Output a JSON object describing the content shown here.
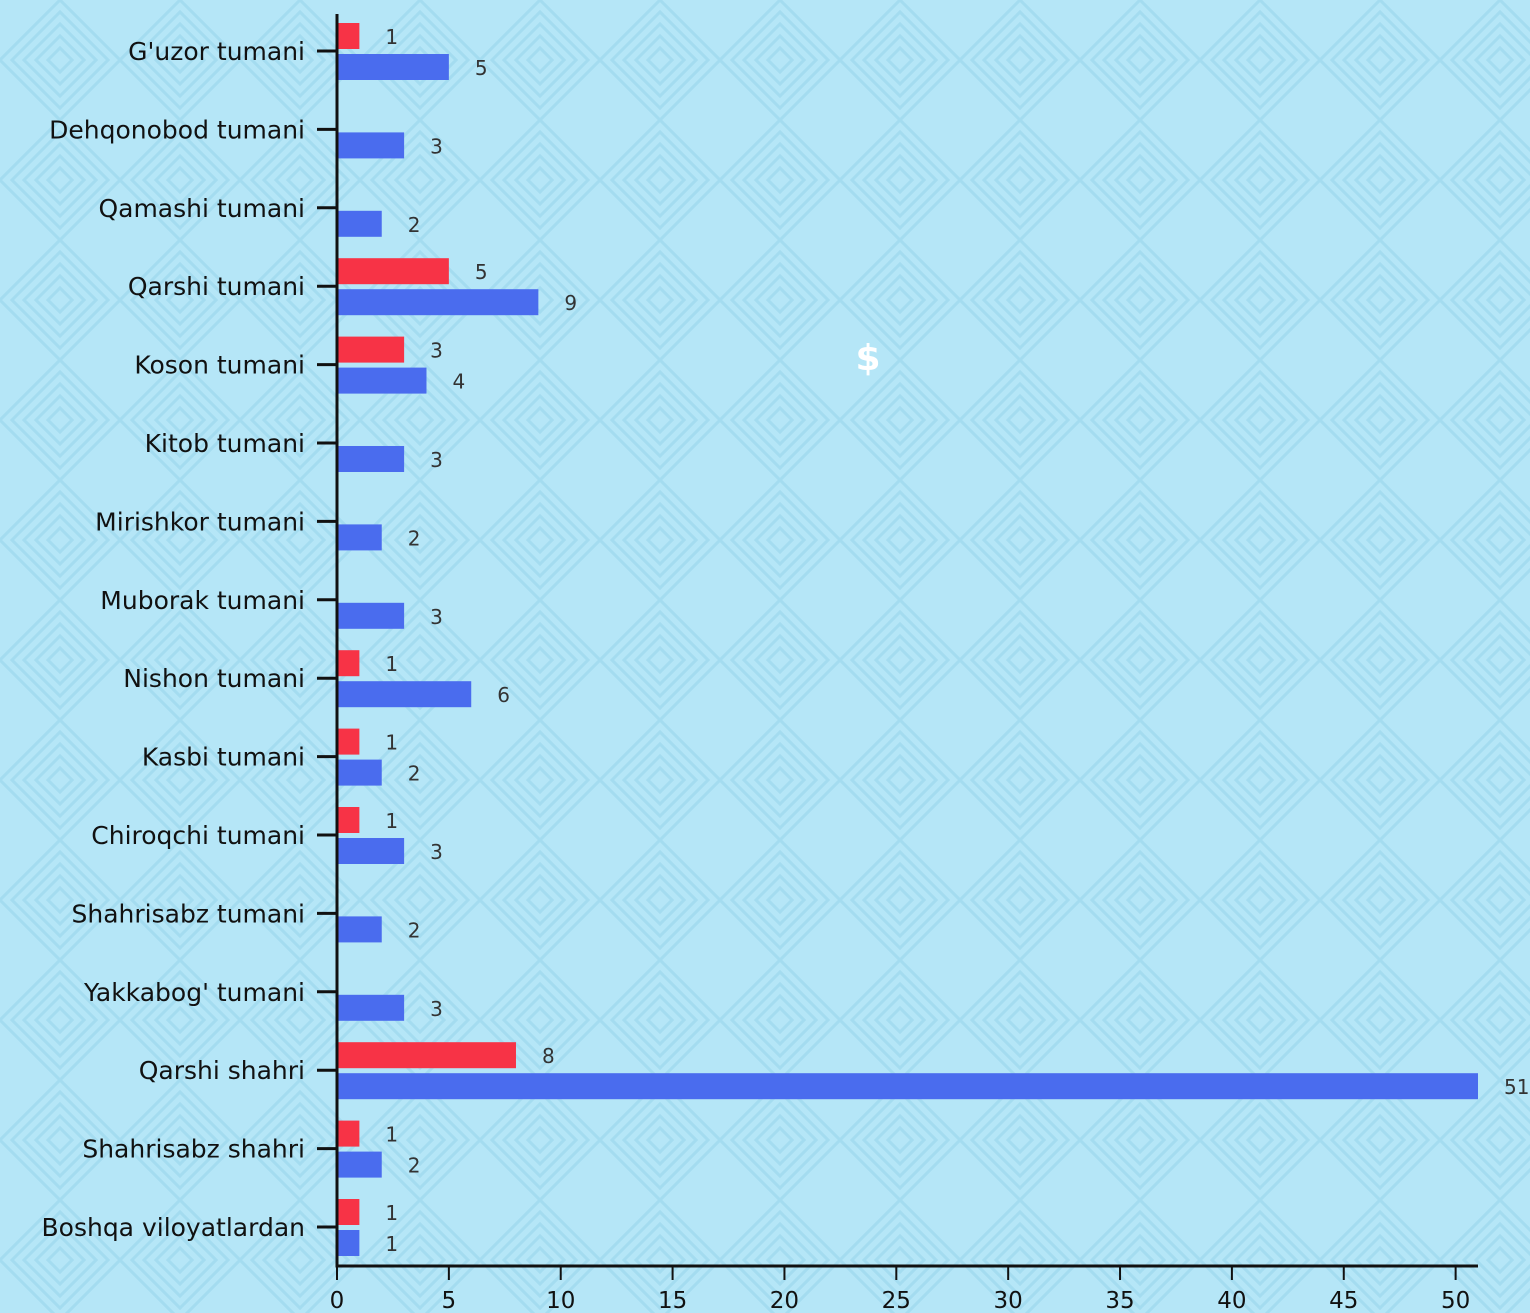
{
  "chart_data": {
    "type": "bar",
    "orientation": "horizontal",
    "categories": [
      "G'uzor tumani",
      "Dehqonobod tumani",
      "Qamashi tumani",
      "Qarshi tumani",
      "Koson tumani",
      "Kitob tumani",
      "Mirishkor tumani",
      "Muborak tumani",
      "Nishon tumani",
      "Kasbi tumani",
      "Chiroqchi tumani",
      "Shahrisabz tumani",
      "Yakkabog' tumani",
      "Qarshi shahri",
      "Shahrisabz shahri",
      "Boshqa viloyatlardan"
    ],
    "series": [
      {
        "color": "#f73346",
        "values": [
          1,
          null,
          null,
          5,
          3,
          null,
          null,
          null,
          1,
          1,
          1,
          null,
          null,
          8,
          1,
          1
        ]
      },
      {
        "color": "#4a6cee",
        "values": [
          5,
          3,
          2,
          9,
          4,
          3,
          2,
          3,
          6,
          2,
          3,
          2,
          3,
          51,
          2,
          1
        ]
      }
    ],
    "xlim": [
      0,
      51
    ],
    "xticks": [
      0,
      5,
      10,
      15,
      20,
      25,
      30,
      35,
      40,
      45,
      50
    ],
    "grid": false,
    "legend": "none"
  },
  "annotation": {
    "symbol": "$"
  },
  "colors": {
    "background": "#b5e6f7",
    "pattern": "#9fd8ee",
    "axis": "#111111"
  }
}
